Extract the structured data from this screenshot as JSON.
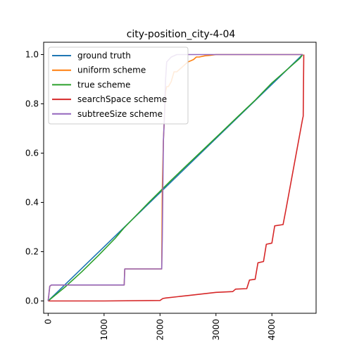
{
  "chart_data": {
    "type": "line",
    "title": "city-position_city-4-04",
    "xlabel": "",
    "ylabel": "",
    "xlim": [
      -80,
      4790
    ],
    "ylim": [
      -0.05,
      1.05
    ],
    "x_ticks": [
      0,
      1000,
      2000,
      3000,
      4000
    ],
    "x_tick_labels": [
      "0",
      "1000",
      "2000",
      "3000",
      "4000"
    ],
    "y_ticks": [
      0.0,
      0.2,
      0.4,
      0.6,
      0.8,
      1.0
    ],
    "y_tick_labels": [
      "0.0",
      "0.2",
      "0.4",
      "0.6",
      "0.8",
      "1.0"
    ],
    "grid": false,
    "legend_position": "upper-left",
    "series": [
      {
        "name": "ground truth",
        "color": "#1f77b4",
        "x": [
          0,
          4550
        ],
        "y": [
          0.0,
          1.0
        ]
      },
      {
        "name": "uniform scheme",
        "color": "#ff7f0e",
        "x": [
          0,
          30,
          60,
          1360,
          1370,
          2030,
          2040,
          2060,
          2080,
          2100,
          2120,
          2150,
          2200,
          2250,
          2300,
          2350,
          2400,
          2450,
          2500,
          2550,
          2600,
          2650,
          2700,
          2800,
          2900,
          3000,
          4550
        ],
        "y": [
          0.0,
          0.06,
          0.065,
          0.065,
          0.13,
          0.13,
          0.45,
          0.65,
          0.75,
          0.85,
          0.87,
          0.87,
          0.89,
          0.93,
          0.93,
          0.94,
          0.95,
          0.96,
          0.97,
          0.975,
          0.98,
          0.99,
          0.99,
          0.995,
          0.997,
          1.0,
          1.0
        ]
      },
      {
        "name": "true scheme",
        "color": "#2ca02c",
        "x": [
          0,
          300,
          600,
          900,
          1200,
          1350,
          1500,
          1800,
          2000,
          2200,
          2500,
          2800,
          3100,
          3400,
          3700,
          4000,
          4300,
          4500,
          4550
        ],
        "y": [
          0.0,
          0.056,
          0.118,
          0.185,
          0.255,
          0.295,
          0.33,
          0.4,
          0.445,
          0.49,
          0.555,
          0.62,
          0.685,
          0.75,
          0.815,
          0.885,
          0.945,
          0.985,
          1.0
        ]
      },
      {
        "name": "searchSpace scheme",
        "color": "#d62728",
        "x": [
          0,
          1000,
          2000,
          2050,
          2100,
          2500,
          3000,
          3300,
          3350,
          3550,
          3600,
          3700,
          3750,
          3850,
          3900,
          4000,
          4050,
          4200,
          4250,
          4550,
          4560,
          4570
        ],
        "y": [
          0.0,
          0.0,
          0.002,
          0.01,
          0.012,
          0.022,
          0.035,
          0.038,
          0.048,
          0.05,
          0.085,
          0.088,
          0.155,
          0.16,
          0.23,
          0.235,
          0.305,
          0.31,
          0.37,
          0.74,
          0.75,
          1.0
        ]
      },
      {
        "name": "subtreeSize scheme",
        "color": "#9467bd",
        "x": [
          0,
          30,
          60,
          1360,
          1370,
          2030,
          2040,
          2060,
          2080,
          2100,
          2120,
          2200,
          2300,
          2500,
          3000,
          4550
        ],
        "y": [
          0.0,
          0.06,
          0.065,
          0.065,
          0.13,
          0.13,
          0.25,
          0.65,
          0.75,
          0.9,
          0.97,
          0.99,
          1.0,
          1.0,
          1.0,
          1.0
        ]
      }
    ]
  }
}
